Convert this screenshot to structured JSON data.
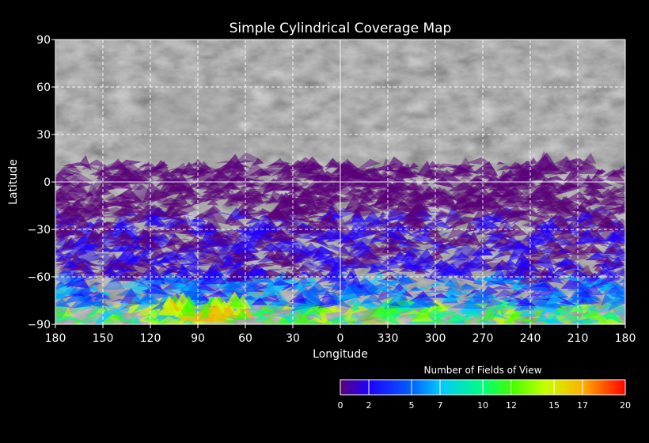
{
  "chart_data": {
    "type": "heatmap",
    "title": "Simple Cylindrical Coverage Map",
    "xlabel": "Longitude",
    "ylabel": "Latitude",
    "x_tick_labels": [
      "180",
      "150",
      "120",
      "90",
      "60",
      "30",
      "0",
      "330",
      "300",
      "270",
      "240",
      "210",
      "180"
    ],
    "y_ticks": [
      90,
      60,
      30,
      0,
      -30,
      -60,
      -90
    ],
    "y_tick_labels": [
      "90",
      "60",
      "30",
      "0",
      "−30",
      "−60",
      "−90"
    ],
    "ylim": [
      -90,
      90
    ],
    "grid": true,
    "colorbar": {
      "title": "Number of Fields of View",
      "range": [
        0,
        20
      ],
      "tick_values": [
        0,
        2,
        5,
        7,
        10,
        12,
        15,
        17,
        20
      ],
      "tick_labels": [
        "0",
        "2",
        "5",
        "7",
        "10",
        "12",
        "15",
        "17",
        "20"
      ],
      "colors": [
        "#5a007a",
        "#2000ff",
        "#0060ff",
        "#00c8ff",
        "#00ff80",
        "#40ff00",
        "#c8ff00",
        "#ffb000",
        "#ff5000",
        "#ff0000"
      ]
    },
    "coverage_summary": [
      {
        "lat_range": [
          -90,
          -78
        ],
        "fields_of_view": 10
      },
      {
        "lat_range": [
          -78,
          -60
        ],
        "fields_of_view": 5
      },
      {
        "lat_range": [
          -60,
          -20
        ],
        "fields_of_view": 2
      },
      {
        "lat_range": [
          -20,
          12
        ],
        "fields_of_view": 1
      }
    ],
    "hotspot": {
      "lon_range": [
        110,
        60
      ],
      "lat_range": [
        -85,
        -75
      ],
      "fields_of_view": 15
    }
  }
}
